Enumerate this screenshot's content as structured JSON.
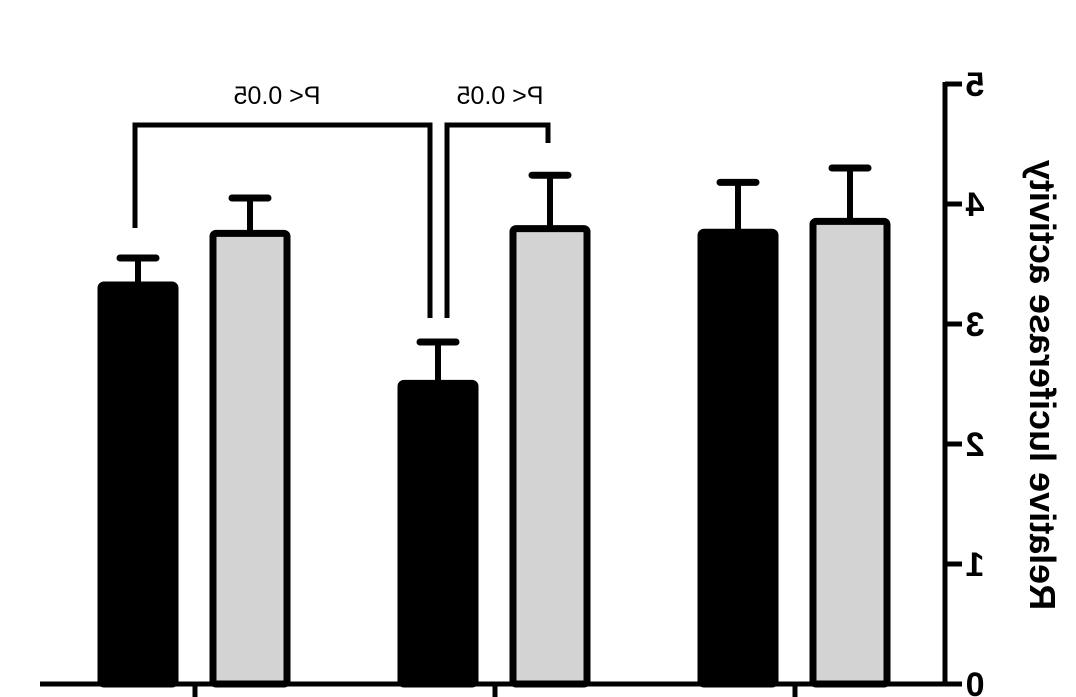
{
  "chart_data": {
    "type": "bar",
    "orientation_note_visible": "mirrored",
    "title": "",
    "xlabel": "",
    "ylabel": "Relative luciferase activity",
    "ylim": [
      0,
      5
    ],
    "yticks": [
      "0",
      "1",
      "2",
      "3",
      "4",
      "5"
    ],
    "categories": [
      "",
      "",
      ""
    ],
    "series": [
      {
        "color": "#000000",
        "values": [
          3.35,
          2.53,
          3.79
        ],
        "errors": [
          0.2,
          0.32,
          0.39
        ]
      },
      {
        "color": "#d3d3d3",
        "values": [
          3.78,
          3.82,
          3.88
        ],
        "errors": [
          0.27,
          0.42,
          0.42
        ]
      }
    ],
    "annotations": [
      {
        "text": "P< 0.05",
        "between": "group 1 black vs group 2 black"
      },
      {
        "text": "P< 0.05",
        "between": "group 2 black vs group 2 gray"
      }
    ],
    "grid": false,
    "legend": "none"
  }
}
